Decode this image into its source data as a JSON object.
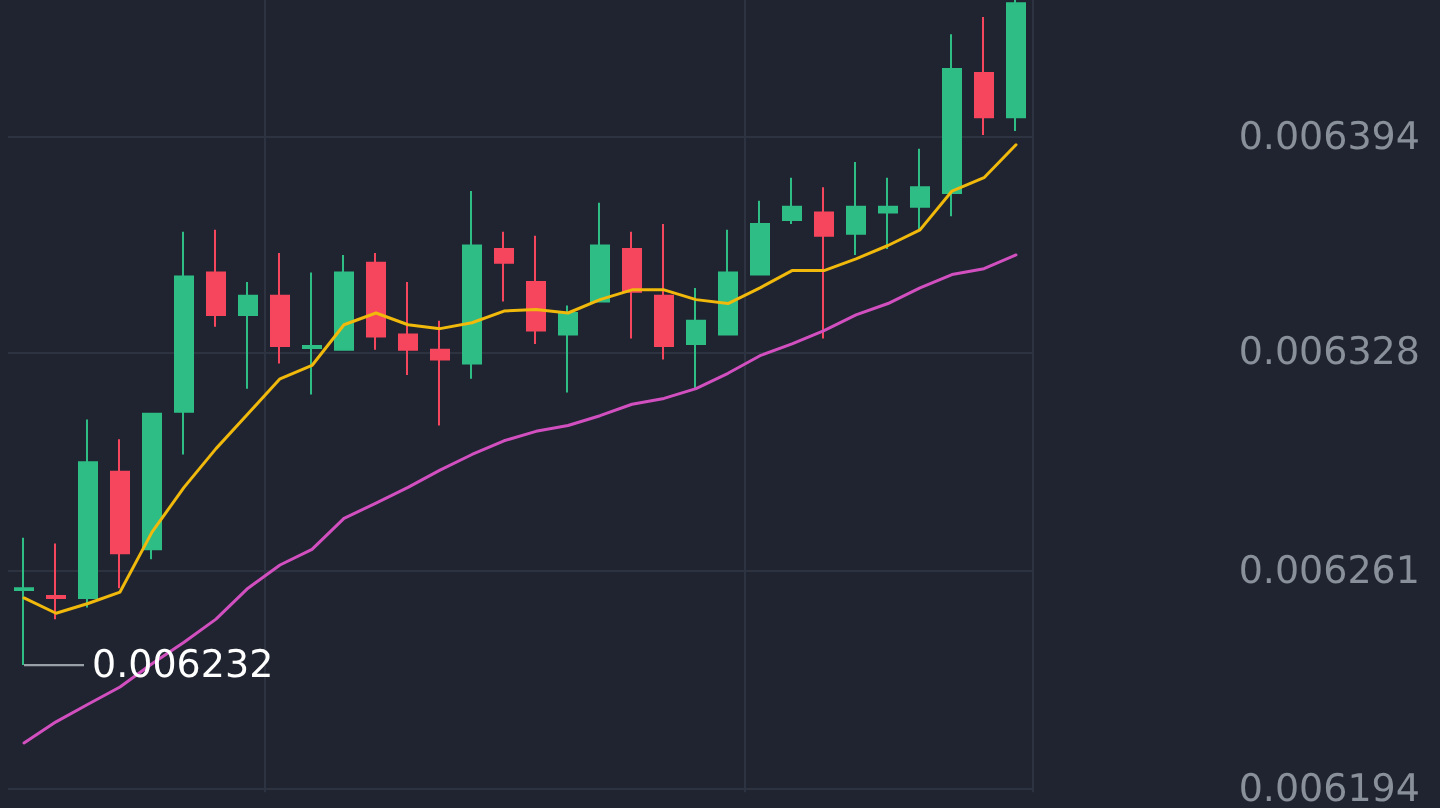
{
  "chart_data": {
    "type": "candlestick",
    "categories": [
      null,
      null,
      null,
      null,
      null,
      null,
      null,
      null,
      null,
      null,
      null,
      null,
      null,
      null,
      null,
      null,
      null,
      null,
      null,
      null,
      null,
      null,
      null,
      null,
      null,
      null,
      null,
      null,
      null,
      null,
      null,
      null
    ],
    "ohlc": [
      [
        0.006255,
        0.0062711,
        0.006232,
        0.0062556
      ],
      [
        0.0062532,
        0.0062693,
        0.0062461,
        0.0062526
      ],
      [
        0.0062526,
        0.0063073,
        0.0062497,
        0.0062942
      ],
      [
        0.0062913,
        0.0063013,
        0.0062556,
        0.0062663
      ],
      [
        0.0062675,
        0.0063091,
        0.0062645,
        0.0063091
      ],
      [
        0.0063097,
        0.0063649,
        0.0062966,
        0.0063512
      ],
      [
        0.0063524,
        0.0063655,
        0.0063358,
        0.0063394
      ],
      [
        0.0063394,
        0.0063495,
        0.0063168,
        0.0063453
      ],
      [
        0.0063453,
        0.0063584,
        0.0063245,
        0.0063299
      ],
      [
        0.0063293,
        0.0063524,
        0.006315,
        0.0063299
      ],
      [
        0.0063287,
        0.0063578,
        0.0063287,
        0.0063524
      ],
      [
        0.0063554,
        0.0063584,
        0.0063287,
        0.0063328
      ],
      [
        0.0063334,
        0.0063495,
        0.006321,
        0.0063287
      ],
      [
        0.0063287,
        0.0063376,
        0.0063055,
        0.0063257
      ],
      [
        0.0063245,
        0.0063774,
        0.0063198,
        0.0063607
      ],
      [
        0.0063596,
        0.0063649,
        0.0063435,
        0.0063554
      ],
      [
        0.0063495,
        0.0063637,
        0.0063305,
        0.0063346
      ],
      [
        0.0063334,
        0.0063423,
        0.0063156,
        0.00634
      ],
      [
        0.0063435,
        0.0063738,
        0.0063435,
        0.0063607
      ],
      [
        0.0063596,
        0.0063649,
        0.0063322,
        0.0063465
      ],
      [
        0.0063453,
        0.0063673,
        0.0063257,
        0.0063299
      ],
      [
        0.0063305,
        0.0063477,
        0.0063168,
        0.0063376
      ],
      [
        0.0063334,
        0.0063655,
        0.0063334,
        0.0063524
      ],
      [
        0.0063518,
        0.0063744,
        0.0063518,
        0.0063673
      ],
      [
        0.0063685,
        0.0063815,
        0.0063673,
        0.0063726
      ],
      [
        0.0063708,
        0.0063786,
        0.0063322,
        0.0063637
      ],
      [
        0.0063643,
        0.0063863,
        0.0063578,
        0.0063726
      ],
      [
        0.0063708,
        0.0063815,
        0.0063596,
        0.0063726
      ],
      [
        0.0063726,
        0.0063904,
        0.0063655,
        0.0063786
      ],
      [
        0.0063768,
        0.0064255,
        0.0063697,
        0.0064148
      ],
      [
        0.0064136,
        0.0064308,
        0.0063946,
        0.0064
      ],
      [
        0.0064,
        0.006436,
        0.0063958,
        0.006435
      ]
    ],
    "colors": [
      "#2ebd85",
      "#f6465d",
      "#2ebd85",
      "#f6465d",
      "#2ebd85",
      "#2ebd85",
      "#f6465d",
      "#2ebd85",
      "#f6465d",
      "#2ebd85",
      "#2ebd85",
      "#f6465d",
      "#f6465d",
      "#f6465d",
      "#2ebd85",
      "#f6465d",
      "#f6465d",
      "#2ebd85",
      "#2ebd85",
      "#f6465d",
      "#f6465d",
      "#2ebd85",
      "#2ebd85",
      "#2ebd85",
      "#2ebd85",
      "#f6465d",
      "#2ebd85",
      "#2ebd85",
      "#2ebd85",
      "#2ebd85",
      "#f6465d",
      "#2ebd85"
    ],
    "series": [
      {
        "type": "line",
        "color": "#f0b90b",
        "values": [
          0.0062526,
          0.0062479,
          0.0062509,
          0.0062544,
          0.0062728,
          0.0062865,
          0.0062984,
          0.0063091,
          0.0063198,
          0.0063239,
          0.0063364,
          0.00634,
          0.0063364,
          0.0063352,
          0.006337,
          0.0063406,
          0.0063411,
          0.00634,
          0.0063441,
          0.0063471,
          0.0063471,
          0.0063441,
          0.0063429,
          0.0063477,
          0.006353,
          0.006353,
          0.0063566,
          0.0063607,
          0.0063655,
          0.0063774,
          0.0063815,
          0.0063916
        ]
      },
      {
        "type": "line",
        "color": "#d24fc0",
        "values": [
          0.0062081,
          0.0062146,
          0.00622,
          0.0062253,
          0.0062324,
          0.006239,
          0.0062461,
          0.0062556,
          0.0062627,
          0.0062675,
          0.006277,
          0.0062817,
          0.0062865,
          0.0062918,
          0.0062966,
          0.0063008,
          0.0063037,
          0.0063055,
          0.0063085,
          0.006312,
          0.0063138,
          0.0063168,
          0.0063215,
          0.0063269,
          0.0063305,
          0.0063346,
          0.0063394,
          0.0063429,
          0.0063477,
          0.0063518,
          0.0063536,
          0.0063578
        ]
      }
    ],
    "ylim": [
      0.006193,
      0.006436
    ],
    "yticks": [
      0.006194,
      0.006261,
      0.006328,
      0.006394
    ],
    "tick_labels": "y",
    "grid": true,
    "annotations": [
      "0.006232"
    ]
  }
}
